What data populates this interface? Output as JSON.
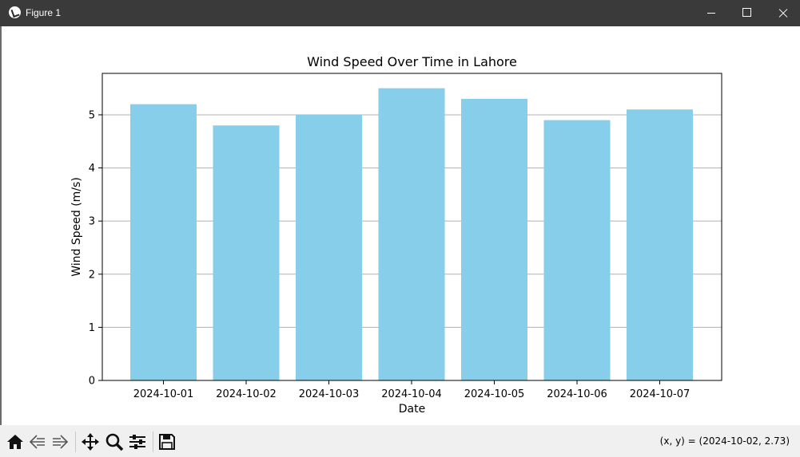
{
  "window": {
    "title": "Figure 1"
  },
  "toolbar": {
    "tools": [
      "home-icon",
      "back-icon",
      "forward-icon",
      "pan-icon",
      "zoom-icon",
      "configure-subplots-icon",
      "save-icon"
    ],
    "coords_text": "(x, y) = (2024-10-02, 2.73)"
  },
  "colors": {
    "bar": "#87ceeb",
    "grid": "#b0b0b0",
    "titlebar": "#3a3a3a",
    "toolbar": "#f0f0f0"
  },
  "chart_data": {
    "type": "bar",
    "title": "Wind Speed Over Time in Lahore",
    "xlabel": "Date",
    "ylabel": "Wind Speed (m/s)",
    "categories": [
      "2024-10-01",
      "2024-10-02",
      "2024-10-03",
      "2024-10-04",
      "2024-10-05",
      "2024-10-06",
      "2024-10-07"
    ],
    "values": [
      5.2,
      4.8,
      5.0,
      5.5,
      5.3,
      4.9,
      5.1
    ],
    "ylim": [
      0,
      5.78
    ],
    "yticks": [
      0,
      1,
      2,
      3,
      4,
      5
    ],
    "grid": "y-major"
  }
}
